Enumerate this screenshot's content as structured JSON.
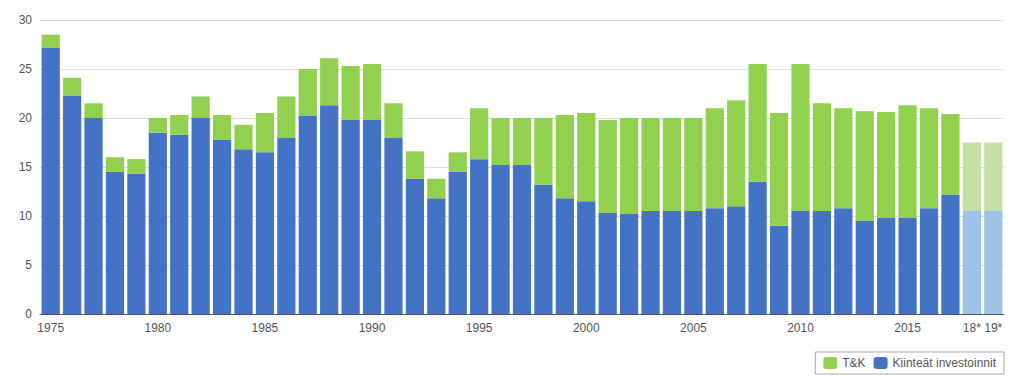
{
  "chart_data": {
    "type": "bar",
    "stacked": true,
    "grid": true,
    "legend": "lower right",
    "categories": [
      "1975",
      null,
      null,
      null,
      null,
      "1980",
      null,
      null,
      null,
      null,
      "1985",
      null,
      null,
      null,
      null,
      "1990",
      null,
      null,
      null,
      null,
      "1995",
      null,
      null,
      null,
      null,
      "2000",
      null,
      null,
      null,
      null,
      "2005",
      null,
      null,
      null,
      null,
      "2010",
      null,
      null,
      null,
      null,
      "2015",
      null,
      null,
      "18*",
      "19*"
    ],
    "ylim": [
      0,
      30
    ],
    "yticks": [
      0,
      5,
      10,
      15,
      20,
      25,
      30
    ],
    "series": [
      {
        "name": "Kiinteät investoinnit",
        "color": "#4472C4",
        "colors": [
          "#4472C4",
          "#4472C4",
          "#4472C4",
          "#4472C4",
          "#4472C4",
          "#4472C4",
          "#4472C4",
          "#4472C4",
          "#4472C4",
          "#4472C4",
          "#4472C4",
          "#4472C4",
          "#4472C4",
          "#4472C4",
          "#4472C4",
          "#4472C4",
          "#4472C4",
          "#4472C4",
          "#4472C4",
          "#4472C4",
          "#4472C4",
          "#4472C4",
          "#4472C4",
          "#4472C4",
          "#4472C4",
          "#4472C4",
          "#4472C4",
          "#4472C4",
          "#4472C4",
          "#4472C4",
          "#4472C4",
          "#4472C4",
          "#4472C4",
          "#4472C4",
          "#4472C4",
          "#4472C4",
          "#4472C4",
          "#4472C4",
          "#4472C4",
          "#4472C4",
          "#4472C4",
          "#4472C4",
          "#4472C4",
          "#9DC3E6",
          "#9DC3E6"
        ],
        "values": [
          27.2,
          22.3,
          20.0,
          14.5,
          14.3,
          18.5,
          18.3,
          20.0,
          17.8,
          16.8,
          16.5,
          18.0,
          20.2,
          21.3,
          19.8,
          19.8,
          18.0,
          13.8,
          11.8,
          14.5,
          15.8,
          15.2,
          15.2,
          13.2,
          11.8,
          11.5,
          10.3,
          10.2,
          10.5,
          10.5,
          10.5,
          10.8,
          11.0,
          13.5,
          9.0,
          10.5,
          10.5,
          10.8,
          9.5,
          9.8,
          9.8,
          10.8,
          12.2,
          10.5,
          10.5
        ]
      },
      {
        "name": "T&K",
        "color": "#92D050",
        "colors": [
          "#92D050",
          "#92D050",
          "#92D050",
          "#92D050",
          "#92D050",
          "#92D050",
          "#92D050",
          "#92D050",
          "#92D050",
          "#92D050",
          "#92D050",
          "#92D050",
          "#92D050",
          "#92D050",
          "#92D050",
          "#92D050",
          "#92D050",
          "#92D050",
          "#92D050",
          "#92D050",
          "#92D050",
          "#92D050",
          "#92D050",
          "#92D050",
          "#92D050",
          "#92D050",
          "#92D050",
          "#92D050",
          "#92D050",
          "#92D050",
          "#92D050",
          "#92D050",
          "#92D050",
          "#92D050",
          "#92D050",
          "#92D050",
          "#92D050",
          "#92D050",
          "#92D050",
          "#92D050",
          "#92D050",
          "#92D050",
          "#92D050",
          "#C5E0A5",
          "#C5E0A5"
        ],
        "values": [
          1.3,
          1.8,
          1.5,
          1.5,
          1.5,
          1.5,
          2.0,
          2.2,
          2.5,
          2.5,
          4.0,
          4.2,
          4.8,
          4.8,
          5.5,
          5.7,
          3.5,
          2.8,
          2.0,
          2.0,
          5.2,
          4.8,
          4.8,
          6.8,
          8.5,
          9.0,
          9.5,
          9.8,
          9.5,
          9.5,
          9.5,
          10.2,
          10.8,
          12.0,
          11.5,
          15.0,
          11.0,
          10.2,
          11.2,
          10.8,
          11.5,
          10.2,
          8.2,
          7.0,
          7.0
        ]
      }
    ]
  }
}
